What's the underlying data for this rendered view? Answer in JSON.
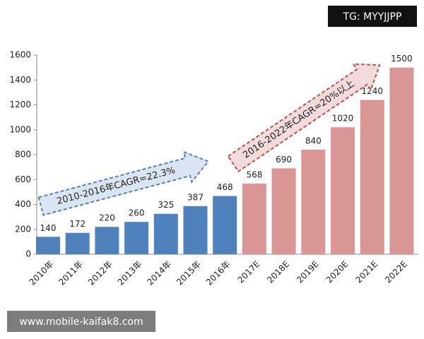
{
  "chart_data": {
    "type": "bar",
    "categories": [
      "2010年",
      "2011年",
      "2012年",
      "2013年",
      "2014年",
      "2015年",
      "2016年",
      "2017E",
      "2018E",
      "2019E",
      "2020E",
      "2021E",
      "2022E"
    ],
    "values": [
      140,
      172,
      220,
      260,
      325,
      387,
      468,
      568,
      690,
      840,
      1020,
      1240,
      1500
    ],
    "colors": [
      "#4f81bd",
      "#4f81bd",
      "#4f81bd",
      "#4f81bd",
      "#4f81bd",
      "#4f81bd",
      "#4f81bd",
      "#d99694",
      "#d99694",
      "#d99694",
      "#d99694",
      "#d99694",
      "#d99694"
    ],
    "ylim": [
      0,
      1600
    ],
    "yticks": [
      0,
      200,
      400,
      600,
      800,
      1000,
      1200,
      1400,
      1600
    ],
    "grid": false,
    "annotations": [
      "2010-2016年CAGR=22.3%",
      "2016-2022年CAGR=20%以上"
    ]
  },
  "watermarks": [
    "TG: MYYJJPP",
    "www.mobile-kaifak8.com"
  ]
}
